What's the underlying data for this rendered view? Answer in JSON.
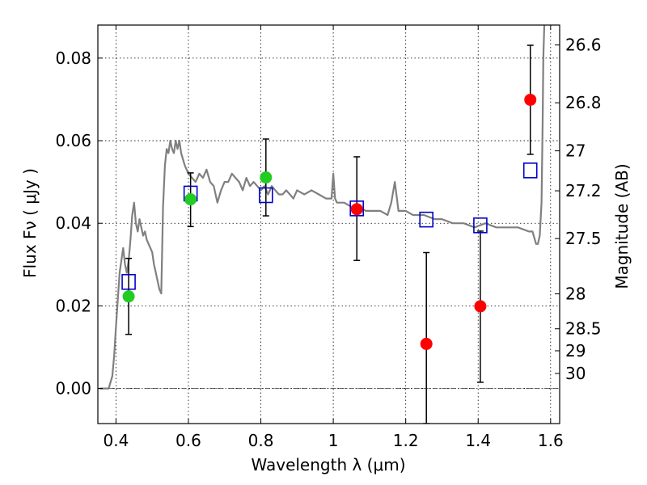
{
  "chart_data": {
    "type": "scatter",
    "xlabel": "Wavelength  λ (μm)",
    "ylabel": "Flux  Fν  ( μJy )",
    "ylabel_right": "Magnitude (AB)",
    "xlim": [
      0.35,
      1.625
    ],
    "ylim": [
      -0.0085,
      0.088
    ],
    "grid": true,
    "x_ticks": [
      {
        "value": 0.4,
        "label": "0.4"
      },
      {
        "value": 0.6,
        "label": "0.6"
      },
      {
        "value": 0.8,
        "label": "0.8"
      },
      {
        "value": 1.0,
        "label": "1"
      },
      {
        "value": 1.2,
        "label": "1.2"
      },
      {
        "value": 1.4,
        "label": "1.4"
      },
      {
        "value": 1.6,
        "label": "1.6"
      }
    ],
    "y_ticks": [
      {
        "value": 0.0,
        "label": "0.00"
      },
      {
        "value": 0.02,
        "label": "0.02"
      },
      {
        "value": 0.04,
        "label": "0.04"
      },
      {
        "value": 0.06,
        "label": "0.06"
      },
      {
        "value": 0.08,
        "label": "0.08"
      }
    ],
    "magnitude_ticks": [
      {
        "value": 26.6,
        "label": "26.6"
      },
      {
        "value": 26.8,
        "label": "26.8"
      },
      {
        "value": 27.0,
        "label": "27"
      },
      {
        "value": 27.2,
        "label": "27.2"
      },
      {
        "value": 27.5,
        "label": "27.5"
      },
      {
        "value": 28.0,
        "label": "28"
      },
      {
        "value": 28.5,
        "label": "28.5"
      },
      {
        "value": 29.0,
        "label": "29"
      },
      {
        "value": 30.0,
        "label": "30"
      }
    ],
    "series": [
      {
        "type": "line",
        "color": "#808080",
        "x": [
          0.355,
          0.38,
          0.39,
          0.395,
          0.4,
          0.41,
          0.42,
          0.425,
          0.43,
          0.435,
          0.44,
          0.445,
          0.45,
          0.455,
          0.46,
          0.465,
          0.47,
          0.475,
          0.48,
          0.485,
          0.49,
          0.5,
          0.505,
          0.51,
          0.515,
          0.52,
          0.525,
          0.53,
          0.535,
          0.54,
          0.545,
          0.55,
          0.555,
          0.56,
          0.565,
          0.57,
          0.575,
          0.58,
          0.59,
          0.6,
          0.61,
          0.62,
          0.63,
          0.64,
          0.65,
          0.66,
          0.67,
          0.68,
          0.69,
          0.7,
          0.71,
          0.72,
          0.73,
          0.74,
          0.75,
          0.76,
          0.77,
          0.78,
          0.79,
          0.8,
          0.81,
          0.82,
          0.83,
          0.84,
          0.85,
          0.86,
          0.87,
          0.88,
          0.89,
          0.9,
          0.92,
          0.94,
          0.96,
          0.98,
          0.995,
          1.0,
          1.005,
          1.01,
          1.03,
          1.05,
          1.07,
          1.09,
          1.11,
          1.13,
          1.15,
          1.16,
          1.17,
          1.18,
          1.19,
          1.2,
          1.22,
          1.25,
          1.28,
          1.3,
          1.33,
          1.36,
          1.39,
          1.42,
          1.45,
          1.48,
          1.51,
          1.54,
          1.55,
          1.56,
          1.565,
          1.57,
          1.575,
          1.578,
          1.58,
          1.585,
          1.59
        ],
        "y": [
          0.0,
          0.0,
          0.003,
          0.008,
          0.015,
          0.028,
          0.034,
          0.03,
          0.028,
          0.031,
          0.036,
          0.042,
          0.045,
          0.04,
          0.038,
          0.041,
          0.039,
          0.037,
          0.038,
          0.036,
          0.035,
          0.033,
          0.03,
          0.028,
          0.026,
          0.024,
          0.023,
          0.044,
          0.054,
          0.058,
          0.057,
          0.06,
          0.058,
          0.057,
          0.06,
          0.058,
          0.06,
          0.057,
          0.054,
          0.052,
          0.051,
          0.05,
          0.052,
          0.051,
          0.053,
          0.05,
          0.049,
          0.045,
          0.048,
          0.05,
          0.05,
          0.052,
          0.051,
          0.05,
          0.048,
          0.051,
          0.049,
          0.05,
          0.049,
          0.048,
          0.049,
          0.047,
          0.049,
          0.048,
          0.047,
          0.047,
          0.048,
          0.047,
          0.046,
          0.048,
          0.047,
          0.048,
          0.047,
          0.046,
          0.046,
          0.052,
          0.046,
          0.045,
          0.045,
          0.044,
          0.044,
          0.043,
          0.043,
          0.043,
          0.042,
          0.045,
          0.05,
          0.043,
          0.043,
          0.043,
          0.042,
          0.042,
          0.041,
          0.041,
          0.04,
          0.04,
          0.039,
          0.04,
          0.039,
          0.039,
          0.039,
          0.038,
          0.038,
          0.035,
          0.035,
          0.037,
          0.045,
          0.065,
          0.08,
          0.095,
          0.098
        ]
      },
      {
        "type": "marker",
        "marker": "open-square",
        "color": "#0000cc",
        "x": [
          0.435,
          0.606,
          0.814,
          1.065,
          1.257,
          1.406,
          1.544
        ],
        "y": [
          0.0258,
          0.0472,
          0.0468,
          0.0436,
          0.0409,
          0.0395,
          0.0528
        ]
      },
      {
        "type": "marker",
        "marker": "filled-circle",
        "color": "#22cc22",
        "x": [
          0.435,
          0.606,
          0.814
        ],
        "y": [
          0.0223,
          0.0458,
          0.0511
        ]
      },
      {
        "type": "marker",
        "marker": "filled-circle",
        "color": "#ff0000",
        "x": [
          1.065,
          1.257,
          1.406,
          1.544
        ],
        "y": [
          0.0434,
          0.0108,
          0.0199,
          0.0699
        ]
      }
    ],
    "error_bars": [
      {
        "x": 0.435,
        "low": 0.0131,
        "high": 0.0315
      },
      {
        "x": 0.606,
        "low": 0.0392,
        "high": 0.0522
      },
      {
        "x": 0.814,
        "low": 0.0418,
        "high": 0.0604
      },
      {
        "x": 1.065,
        "low": 0.031,
        "high": 0.0561
      },
      {
        "x": 1.257,
        "low": -0.0085,
        "high": 0.0329
      },
      {
        "x": 1.406,
        "low": 0.0015,
        "high": 0.0381
      },
      {
        "x": 1.544,
        "low": 0.0567,
        "high": 0.0831
      }
    ]
  }
}
